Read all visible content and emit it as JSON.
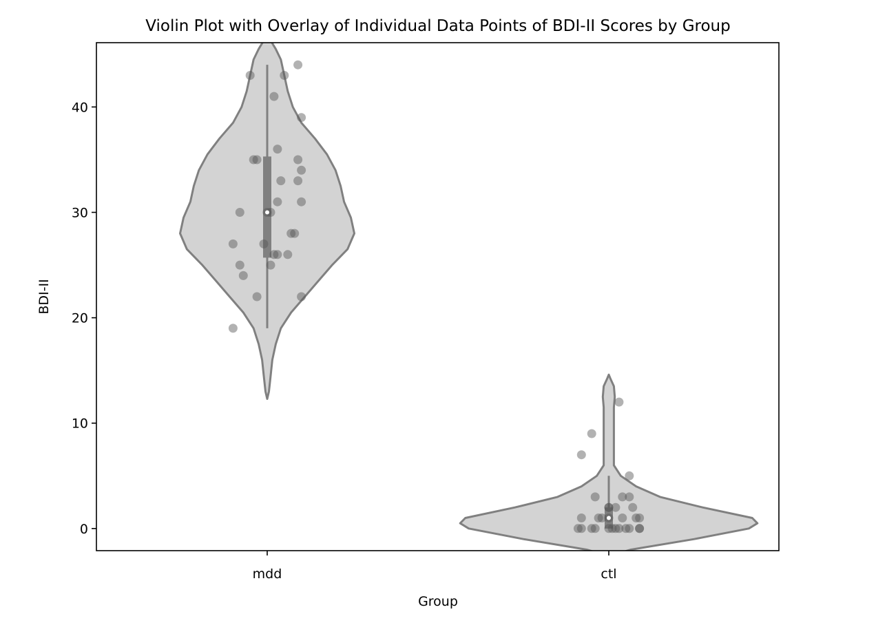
{
  "chart_data": {
    "type": "violin",
    "title": "Violin Plot with Overlay of Individual Data Points of BDI-II Scores by Group",
    "xlabel": "Group",
    "ylabel": "BDI-II",
    "ylim": [
      -2.1,
      46.1
    ],
    "yticks": [
      0,
      10,
      20,
      30,
      40
    ],
    "categories": [
      "mdd",
      "ctl"
    ],
    "grid": false,
    "colors": {
      "violin_fill": "#d3d3d3",
      "violin_edge": "#808080",
      "box": "#808080",
      "points": "#555555",
      "axes": "#000000"
    },
    "groups": [
      {
        "name": "mdd",
        "violin_range": [
          12.3,
          46.8
        ],
        "box": {
          "q1": 25.7,
          "median": 30.0,
          "q3": 35.3,
          "whisker_low": 19,
          "whisker_high": 44
        },
        "density": [
          [
            12.3,
            0.0
          ],
          [
            13.0,
            0.01
          ],
          [
            14.5,
            0.02
          ],
          [
            16.0,
            0.03
          ],
          [
            17.5,
            0.05
          ],
          [
            19.0,
            0.08
          ],
          [
            20.5,
            0.14
          ],
          [
            22.0,
            0.22
          ],
          [
            23.5,
            0.3
          ],
          [
            25.0,
            0.38
          ],
          [
            26.5,
            0.47
          ],
          [
            28.0,
            0.51
          ],
          [
            29.5,
            0.49
          ],
          [
            31.0,
            0.45
          ],
          [
            32.5,
            0.43
          ],
          [
            34.0,
            0.4
          ],
          [
            35.5,
            0.35
          ],
          [
            37.0,
            0.28
          ],
          [
            38.5,
            0.2
          ],
          [
            40.0,
            0.15
          ],
          [
            41.5,
            0.12
          ],
          [
            43.0,
            0.1
          ],
          [
            44.5,
            0.08
          ],
          [
            45.5,
            0.05
          ],
          [
            46.3,
            0.02
          ],
          [
            46.8,
            0.0
          ]
        ],
        "points": [
          [
            -0.05,
            43
          ],
          [
            0.09,
            44
          ],
          [
            0.05,
            43
          ],
          [
            0.02,
            41
          ],
          [
            0.1,
            39
          ],
          [
            0.09,
            35
          ],
          [
            -0.04,
            35
          ],
          [
            -0.03,
            35
          ],
          [
            0.03,
            36
          ],
          [
            0.1,
            34
          ],
          [
            0.04,
            33
          ],
          [
            0.09,
            33
          ],
          [
            0.03,
            31
          ],
          [
            0.1,
            31
          ],
          [
            -0.08,
            30
          ],
          [
            0.0,
            30
          ],
          [
            0.01,
            30
          ],
          [
            0.07,
            28
          ],
          [
            0.08,
            28
          ],
          [
            -0.1,
            27
          ],
          [
            -0.01,
            27
          ],
          [
            0.03,
            26
          ],
          [
            0.06,
            26
          ],
          [
            0.02,
            26
          ],
          [
            -0.08,
            25
          ],
          [
            0.01,
            25
          ],
          [
            -0.07,
            24
          ],
          [
            -0.03,
            22
          ],
          [
            0.1,
            22
          ],
          [
            -0.1,
            19
          ]
        ]
      },
      {
        "name": "ctl",
        "violin_range": [
          -2.6,
          14.6
        ],
        "box": {
          "q1": 0.0,
          "median": 1.0,
          "q3": 2.0,
          "whisker_low": 0,
          "whisker_high": 5
        },
        "density": [
          [
            -2.6,
            0.0
          ],
          [
            -2.0,
            0.13
          ],
          [
            -1.0,
            0.5
          ],
          [
            0.0,
            0.82
          ],
          [
            0.5,
            0.87
          ],
          [
            1.0,
            0.84
          ],
          [
            2.0,
            0.55
          ],
          [
            3.0,
            0.3
          ],
          [
            4.0,
            0.16
          ],
          [
            5.0,
            0.07
          ],
          [
            6.0,
            0.03
          ],
          [
            8.0,
            0.03
          ],
          [
            10.0,
            0.03
          ],
          [
            11.5,
            0.03
          ],
          [
            12.5,
            0.035
          ],
          [
            13.5,
            0.03
          ],
          [
            14.2,
            0.01
          ],
          [
            14.6,
            0.0
          ]
        ],
        "points": [
          [
            0.03,
            12
          ],
          [
            -0.05,
            9
          ],
          [
            -0.08,
            7
          ],
          [
            0.06,
            5
          ],
          [
            -0.04,
            3
          ],
          [
            0.04,
            3
          ],
          [
            0.06,
            3
          ],
          [
            0.0,
            2
          ],
          [
            0.02,
            2
          ],
          [
            0.07,
            2
          ],
          [
            0.0,
            2
          ],
          [
            -0.08,
            1
          ],
          [
            -0.03,
            1
          ],
          [
            -0.02,
            1
          ],
          [
            0.04,
            1
          ],
          [
            0.09,
            1
          ],
          [
            0.08,
            1
          ],
          [
            0.0,
            1
          ],
          [
            -0.09,
            0
          ],
          [
            -0.08,
            0
          ],
          [
            -0.05,
            0
          ],
          [
            -0.04,
            0
          ],
          [
            0.0,
            0
          ],
          [
            0.01,
            0
          ],
          [
            0.03,
            0
          ],
          [
            0.05,
            0
          ],
          [
            0.06,
            0
          ],
          [
            0.09,
            0
          ],
          [
            0.09,
            0
          ],
          [
            0.02,
            0
          ]
        ]
      }
    ]
  }
}
